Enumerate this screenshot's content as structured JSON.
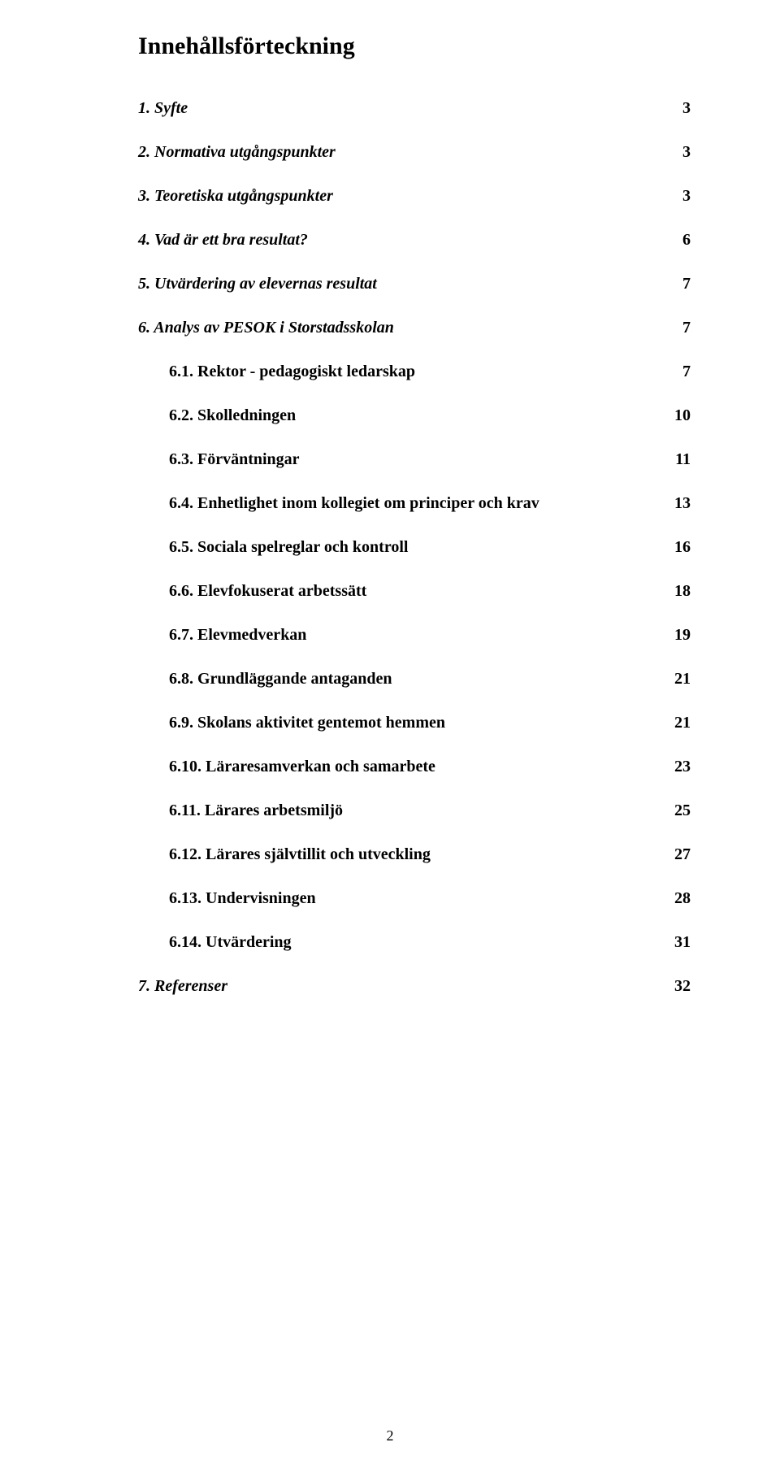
{
  "title": "Innehållsförteckning",
  "toc": [
    {
      "label": "1. Syfte",
      "page": "3",
      "italic": true,
      "sub": false
    },
    {
      "label": "2. Normativa utgångspunkter",
      "page": "3",
      "italic": true,
      "sub": false
    },
    {
      "label": "3. Teoretiska utgångspunkter",
      "page": "3",
      "italic": true,
      "sub": false
    },
    {
      "label": "4. Vad är ett bra resultat?",
      "page": "6",
      "italic": true,
      "sub": false
    },
    {
      "label": "5. Utvärdering av elevernas resultat",
      "page": "7",
      "italic": true,
      "sub": false
    },
    {
      "label": "6. Analys av PESOK i Storstadsskolan",
      "page": "7",
      "italic": true,
      "sub": false
    },
    {
      "label": "6.1. Rektor - pedagogiskt ledarskap",
      "page": "7",
      "italic": false,
      "sub": true
    },
    {
      "label": "6.2. Skolledningen",
      "page": "10",
      "italic": false,
      "sub": true
    },
    {
      "label": "6.3. Förväntningar",
      "page": "11",
      "italic": false,
      "sub": true
    },
    {
      "label": "6.4. Enhetlighet inom kollegiet om principer och krav",
      "page": "13",
      "italic": false,
      "sub": true
    },
    {
      "label": "6.5. Sociala spelreglar och kontroll",
      "page": "16",
      "italic": false,
      "sub": true
    },
    {
      "label": "6.6. Elevfokuserat arbetssätt",
      "page": "18",
      "italic": false,
      "sub": true
    },
    {
      "label": "6.7. Elevmedverkan",
      "page": "19",
      "italic": false,
      "sub": true
    },
    {
      "label": "6.8. Grundläggande antaganden",
      "page": "21",
      "italic": false,
      "sub": true
    },
    {
      "label": "6.9. Skolans aktivitet gentemot hemmen",
      "page": "21",
      "italic": false,
      "sub": true
    },
    {
      "label": "6.10. Läraresamverkan och samarbete",
      "page": "23",
      "italic": false,
      "sub": true
    },
    {
      "label": "6.11. Lärares arbetsmiljö",
      "page": "25",
      "italic": false,
      "sub": true
    },
    {
      "label": "6.12. Lärares självtillit och utveckling",
      "page": "27",
      "italic": false,
      "sub": true
    },
    {
      "label": "6.13. Undervisningen",
      "page": "28",
      "italic": false,
      "sub": true
    },
    {
      "label": "6.14. Utvärdering",
      "page": "31",
      "italic": false,
      "sub": true
    },
    {
      "label": "7. Referenser",
      "page": "32",
      "italic": true,
      "sub": false
    }
  ],
  "pageNumber": "2"
}
